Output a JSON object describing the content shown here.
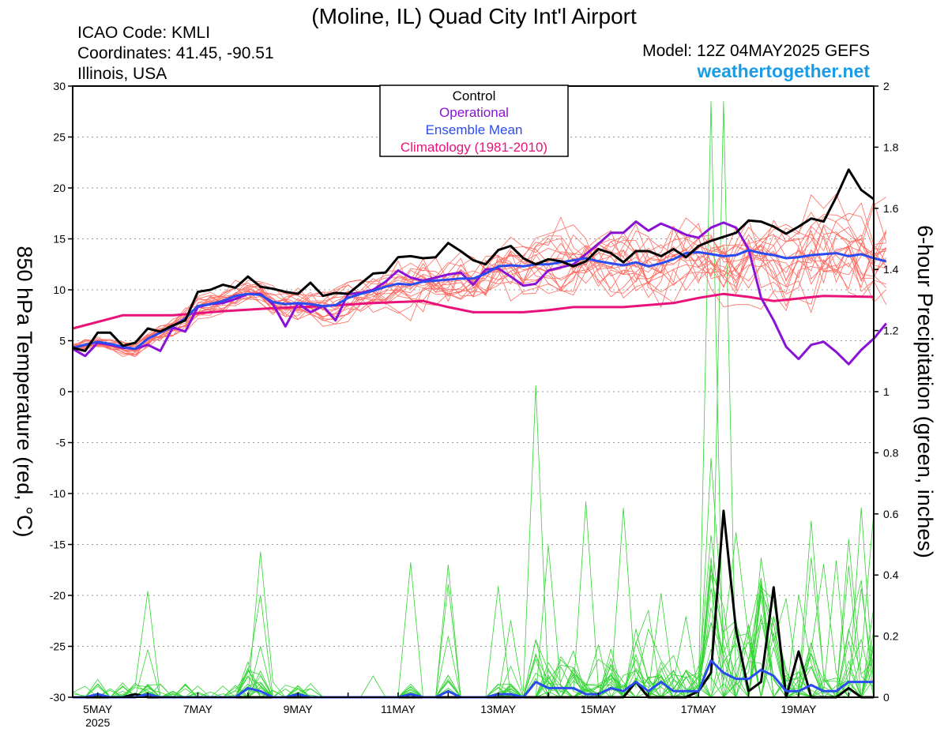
{
  "header": {
    "title": "(Moline, IL) Quad City Int'l Airport",
    "icao": "ICAO Code: KMLI",
    "coords": "Coordinates: 41.45, -90.51",
    "region": "Illinois, USA",
    "model": "Model: 12Z 04MAY2025 GEFS",
    "brand": "weathertogether.net"
  },
  "legend": [
    {
      "label": "Control",
      "color": "#000000"
    },
    {
      "label": "Operational",
      "color": "#8a12d6"
    },
    {
      "label": "Ensemble Mean",
      "color": "#2a4bef"
    },
    {
      "label": "Climatology (1981-2010)",
      "color": "#e8127a"
    }
  ],
  "chart_data": {
    "type": "line",
    "ylabel_left": "850 hPa Temperature (red, °C)",
    "ylabel_right": "6-hour Precipitation (green, inches)",
    "ylim_left": [
      -30,
      30
    ],
    "ylim_right": [
      0,
      2
    ],
    "yticks_left": [
      "30",
      "25",
      "20",
      "15",
      "10",
      "5",
      "0",
      "-5",
      "-10",
      "-15",
      "-20",
      "-25",
      "-30"
    ],
    "yticks_right": [
      "2",
      "1.8",
      "1.6",
      "1.4",
      "1.2",
      "1",
      "0.8",
      "0.6",
      "0.4",
      "0.2",
      "0"
    ],
    "xlim": [
      4.5,
      20.5
    ],
    "xticks": [
      {
        "x": 5,
        "label": "5MAY",
        "sub": "2025"
      },
      {
        "x": 7,
        "label": "7MAY",
        "sub": ""
      },
      {
        "x": 9,
        "label": "9MAY",
        "sub": ""
      },
      {
        "x": 11,
        "label": "11MAY",
        "sub": ""
      },
      {
        "x": 13,
        "label": "13MAY",
        "sub": ""
      },
      {
        "x": 15,
        "label": "15MAY",
        "sub": ""
      },
      {
        "x": 17,
        "label": "17MAY",
        "sub": ""
      },
      {
        "x": 19,
        "label": "19MAY",
        "sub": ""
      }
    ],
    "grid": true,
    "colors": {
      "members_temp": "#ff6a60",
      "members_precip": "#33d433",
      "control": "#000000",
      "operational": "#8a12d6",
      "mean": "#2a4bef",
      "climatology": "#e8127a"
    },
    "series": [
      {
        "name": "Control",
        "axis": "temp",
        "x_start": 4.5,
        "step": 0.25,
        "values": [
          4.3,
          4.0,
          5.8,
          5.8,
          4.5,
          4.8,
          6.2,
          5.9,
          6.5,
          7.0,
          9.8,
          10.0,
          10.5,
          10.2,
          11.3,
          10.3,
          10.1,
          9.8,
          9.6,
          10.7,
          9.4,
          9.7,
          9.6,
          10.6,
          11.6,
          11.7,
          13.2,
          13.3,
          13.1,
          13.2,
          14.6,
          13.8,
          12.9,
          12.5,
          13.9,
          14.3,
          13.1,
          12.5,
          13.0,
          12.8,
          12.3,
          12.8,
          14.0,
          13.6,
          12.7,
          13.8,
          13.8,
          13.3,
          14.0,
          13.2,
          14.3,
          14.8,
          15.2,
          15.6,
          16.8,
          16.7,
          16.2,
          15.5,
          16.2,
          17.0,
          16.7,
          19.1,
          21.8,
          19.8,
          18.9
        ]
      },
      {
        "name": "Operational",
        "axis": "temp",
        "x_start": 4.5,
        "step": 0.25,
        "values": [
          4.2,
          3.5,
          4.8,
          4.6,
          4.3,
          4.2,
          4.6,
          4.0,
          6.3,
          5.9,
          8.3,
          8.6,
          8.7,
          9.1,
          9.6,
          9.6,
          8.6,
          6.4,
          8.7,
          7.8,
          8.4,
          7.0,
          9.6,
          9.7,
          10.0,
          10.8,
          11.9,
          11.2,
          10.9,
          11.2,
          11.5,
          11.7,
          10.5,
          12.0,
          12.1,
          11.3,
          10.4,
          10.6,
          11.9,
          12.2,
          12.5,
          13.5,
          14.5,
          15.6,
          15.6,
          16.7,
          15.8,
          16.5,
          16.0,
          15.4,
          15.1,
          16.1,
          16.6,
          16.1,
          14.0,
          9.2,
          7.0,
          4.4,
          3.2,
          4.6,
          4.9,
          3.9,
          2.7,
          4.1,
          5.2,
          6.7
        ]
      },
      {
        "name": "Ensemble Mean",
        "axis": "temp",
        "x_start": 4.5,
        "step": 0.25,
        "values": [
          4.3,
          4.6,
          4.9,
          4.7,
          4.4,
          4.2,
          5.2,
          5.8,
          6.4,
          7.2,
          8.4,
          8.6,
          8.9,
          9.4,
          9.6,
          9.5,
          8.8,
          8.6,
          8.7,
          8.6,
          8.4,
          8.5,
          9.2,
          9.6,
          9.9,
          10.3,
          10.6,
          10.5,
          10.8,
          10.9,
          11.0,
          11.1,
          11.1,
          11.6,
          12.3,
          12.4,
          12.3,
          12.5,
          12.5,
          12.7,
          12.9,
          13.1,
          12.8,
          12.6,
          12.4,
          12.7,
          12.3,
          12.6,
          13.0,
          13.6,
          13.7,
          13.5,
          13.3,
          13.4,
          13.9,
          13.6,
          13.4,
          13.1,
          13.2,
          13.4,
          13.5,
          13.6,
          13.3,
          13.5,
          13.1,
          12.8
        ]
      },
      {
        "name": "Climatology (1981-2010)",
        "axis": "temp",
        "points": [
          [
            4.5,
            6.2
          ],
          [
            5.5,
            7.5
          ],
          [
            6.5,
            7.5
          ],
          [
            7.5,
            7.9
          ],
          [
            8.5,
            8.2
          ],
          [
            9.5,
            8.4
          ],
          [
            10.5,
            8.7
          ],
          [
            11.5,
            8.9
          ],
          [
            12.0,
            8.3
          ],
          [
            12.5,
            7.8
          ],
          [
            13.5,
            7.8
          ],
          [
            14.0,
            8.0
          ],
          [
            14.5,
            8.3
          ],
          [
            15.5,
            8.3
          ],
          [
            16.5,
            8.7
          ],
          [
            17.0,
            9.2
          ],
          [
            17.5,
            9.6
          ],
          [
            18.0,
            9.3
          ],
          [
            18.5,
            8.9
          ],
          [
            19.5,
            9.4
          ],
          [
            20.5,
            9.3
          ]
        ]
      },
      {
        "name": "Control",
        "axis": "precip",
        "x_start": 4.5,
        "step": 0.25,
        "values": [
          0,
          0,
          0,
          0,
          0,
          0.01,
          0,
          0,
          0,
          0,
          0,
          0,
          0,
          0,
          0,
          0,
          0,
          0,
          0,
          0,
          0,
          0,
          0,
          0,
          0,
          0,
          0,
          0,
          0,
          0,
          0,
          0,
          0,
          0,
          0,
          0,
          0,
          0,
          0,
          0,
          0,
          0,
          0,
          0,
          0,
          0.05,
          0,
          0,
          0,
          0,
          0.02,
          0.08,
          0.61,
          0.22,
          0.02,
          0.05,
          0.36,
          0,
          0.15,
          0,
          0,
          0,
          0.03,
          0,
          0
        ]
      },
      {
        "name": "Ensemble Mean",
        "axis": "precip",
        "x_start": 4.5,
        "step": 0.25,
        "values": [
          0,
          0,
          0.01,
          0,
          0,
          0,
          0.01,
          0,
          0,
          0,
          0,
          0,
          0,
          0,
          0.03,
          0.02,
          0,
          0,
          0.01,
          0,
          0,
          0,
          0,
          0,
          0,
          0,
          0,
          0.01,
          0,
          0,
          0.02,
          0,
          0,
          0,
          0.01,
          0.01,
          0,
          0.05,
          0.03,
          0.03,
          0.03,
          0.01,
          0.01,
          0.03,
          0.02,
          0.05,
          0.02,
          0.05,
          0.02,
          0.02,
          0.02,
          0.12,
          0.08,
          0.06,
          0.06,
          0.09,
          0.07,
          0.02,
          0.02,
          0.04,
          0.02,
          0.02,
          0.05,
          0.05,
          0.05
        ]
      }
    ]
  }
}
